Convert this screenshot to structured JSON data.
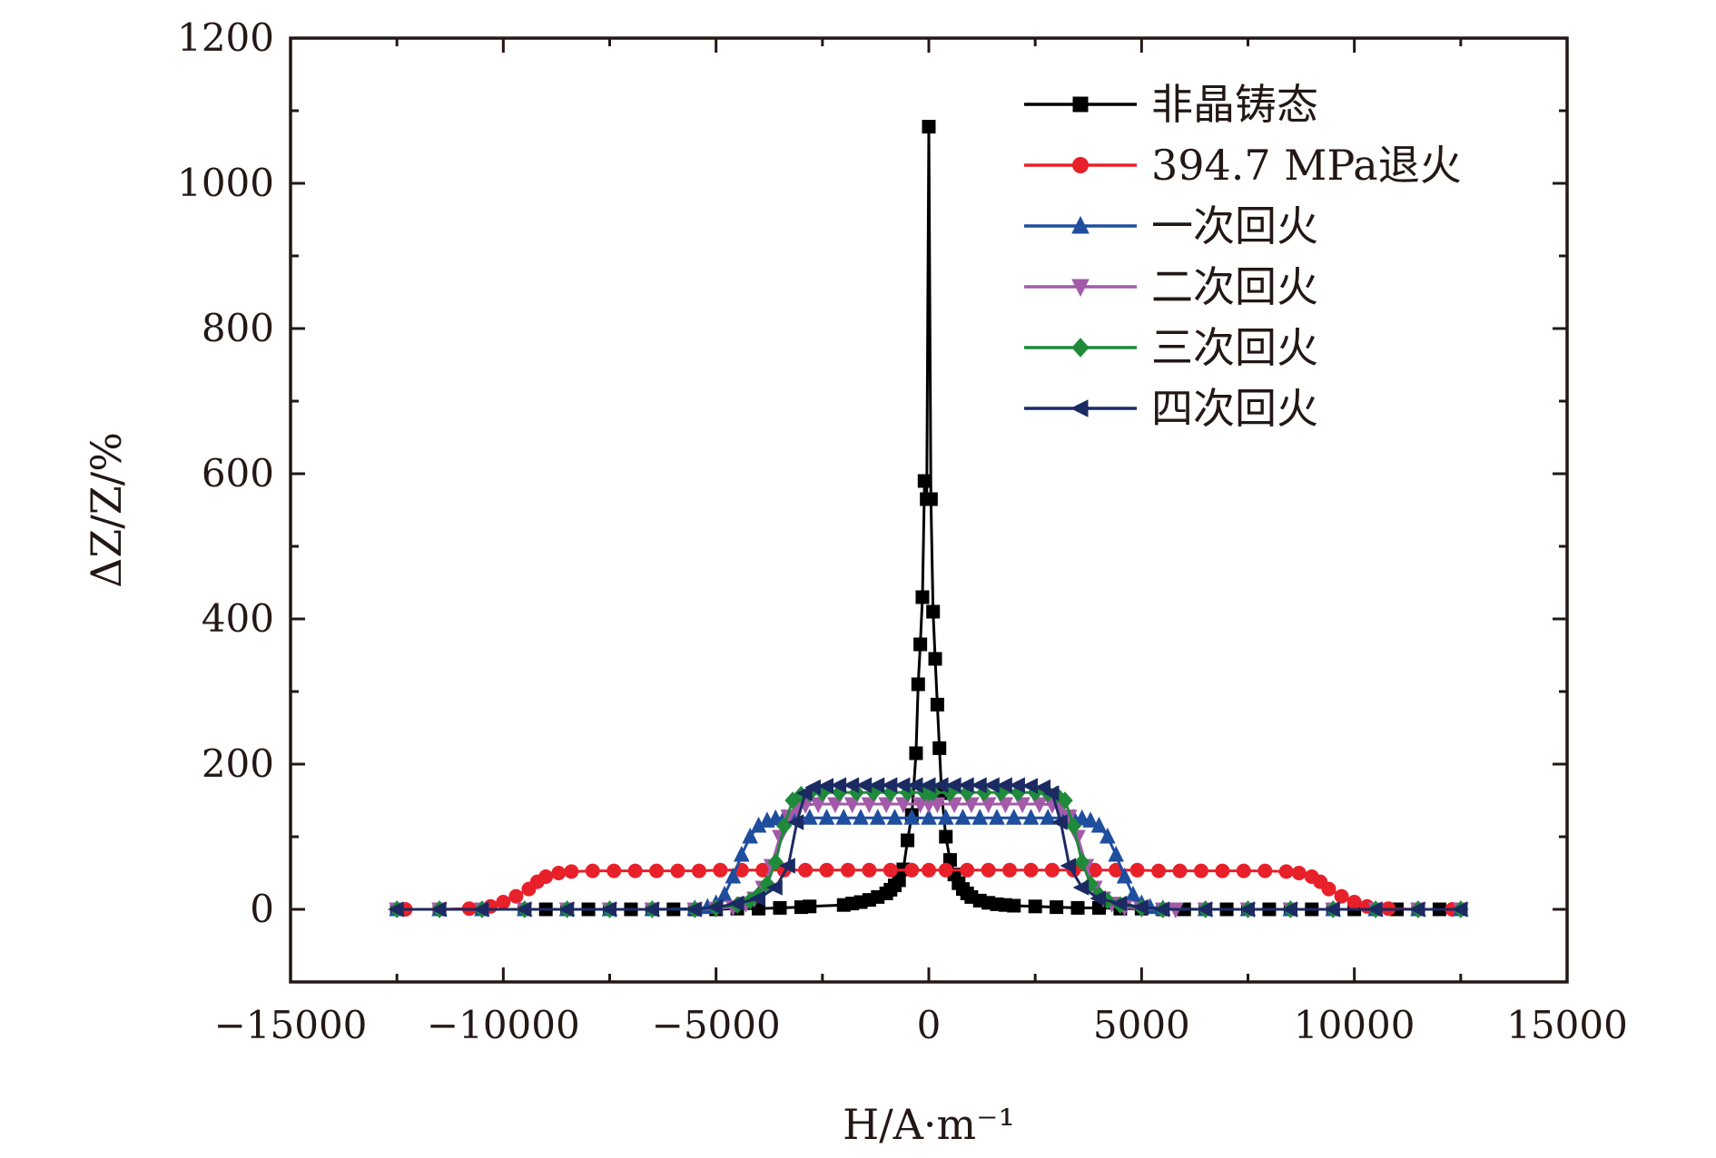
{
  "chart_data": {
    "type": "line",
    "xlabel": "H/A·m⁻¹",
    "ylabel": "ΔZ/Z/%",
    "xlim": [
      -15000,
      15000
    ],
    "ylim": [
      -100,
      1200
    ],
    "xticks": [
      -15000,
      -10000,
      -5000,
      0,
      5000,
      10000,
      15000
    ],
    "xtick_labels": [
      "−15000",
      "−10000",
      "−5000",
      "0",
      "5000",
      "10000",
      "15000"
    ],
    "yticks": [
      0,
      200,
      400,
      600,
      800,
      1000,
      1200
    ],
    "ytick_labels": [
      "0",
      "200",
      "400",
      "600",
      "800",
      "1000",
      "1200"
    ],
    "legend_position": "top-right",
    "series": [
      {
        "name": "非晶铸态",
        "color": "#000000",
        "marker": "square",
        "x": [
          -12500,
          -11500,
          -10500,
          -9500,
          -9000,
          -8500,
          -8000,
          -7500,
          -7000,
          -6500,
          -6000,
          -5500,
          -5000,
          -4500,
          -4000,
          -3500,
          -3000,
          -2800,
          -2000,
          -1800,
          -1600,
          -1400,
          -1200,
          -1000,
          -900,
          -800,
          -700,
          -600,
          -500,
          -400,
          -300,
          -250,
          -200,
          -150,
          -100,
          -50,
          0,
          50,
          100,
          150,
          200,
          250,
          300,
          400,
          500,
          600,
          700,
          800,
          900,
          1000,
          1200,
          1400,
          1600,
          1800,
          2000,
          2500,
          3000,
          3500,
          4000,
          4500,
          5000,
          5500,
          6000,
          6500,
          7000,
          7500,
          8000,
          8500,
          9000,
          9500,
          10000,
          10500,
          11000,
          11500,
          12000,
          12500
        ],
        "y": [
          0,
          0,
          0,
          0,
          0,
          0,
          0,
          0,
          0,
          0,
          0,
          0,
          0,
          1,
          1,
          2,
          3,
          4,
          6,
          8,
          10,
          13,
          17,
          22,
          27,
          33,
          40,
          55,
          95,
          130,
          215,
          310,
          365,
          430,
          590,
          565,
          1078,
          565,
          410,
          345,
          282,
          222,
          160,
          100,
          68,
          48,
          36,
          28,
          22,
          17,
          12,
          9,
          7,
          6,
          5,
          4,
          3,
          2,
          2,
          1,
          1,
          0,
          0,
          0,
          0,
          0,
          0,
          0,
          0,
          0,
          0,
          0,
          0,
          0,
          0,
          0
        ]
      },
      {
        "name": "394.7 MPa退火",
        "color": "#e8202a",
        "marker": "circle",
        "x": [
          -12300,
          -11500,
          -10800,
          -10300,
          -10000,
          -9700,
          -9400,
          -9200,
          -9000,
          -8700,
          -8400,
          -7900,
          -7400,
          -6900,
          -6400,
          -5900,
          -5400,
          -4900,
          -4400,
          -3900,
          -3400,
          -2900,
          -2400,
          -1900,
          -1400,
          -900,
          -400,
          0,
          400,
          900,
          1400,
          1900,
          2400,
          2900,
          3400,
          3900,
          4400,
          4900,
          5400,
          5900,
          6400,
          6900,
          7400,
          7900,
          8400,
          8700,
          9000,
          9200,
          9400,
          9700,
          10000,
          10300,
          10800,
          11500,
          12300
        ],
        "y": [
          0,
          0,
          1,
          4,
          10,
          18,
          28,
          38,
          45,
          50,
          52,
          53,
          53,
          53,
          53,
          53,
          53,
          54,
          54,
          54,
          54,
          54,
          54,
          54,
          54,
          54,
          54,
          54,
          54,
          54,
          54,
          54,
          54,
          54,
          54,
          54,
          54,
          54,
          53,
          53,
          53,
          53,
          53,
          53,
          52,
          50,
          45,
          38,
          28,
          18,
          10,
          4,
          1,
          0,
          0
        ]
      },
      {
        "name": "一次回火",
        "color": "#1f4e9f",
        "marker": "triangle-up",
        "x": [
          -12500,
          -11500,
          -10500,
          -9500,
          -8500,
          -7500,
          -6500,
          -5500,
          -5200,
          -5000,
          -4800,
          -4600,
          -4400,
          -4200,
          -4000,
          -3800,
          -3600,
          -3400,
          -3200,
          -2800,
          -2400,
          -2000,
          -1600,
          -1200,
          -800,
          -400,
          0,
          400,
          800,
          1200,
          1600,
          2000,
          2400,
          2800,
          3200,
          3400,
          3600,
          3800,
          4000,
          4200,
          4400,
          4600,
          4800,
          5000,
          5200,
          5500,
          6500,
          7500,
          8500,
          9500,
          10500,
          11500,
          12500
        ],
        "y": [
          0,
          0,
          0,
          0,
          0,
          0,
          0,
          1,
          3,
          8,
          20,
          45,
          75,
          100,
          115,
          122,
          125,
          126,
          126,
          126,
          126,
          126,
          126,
          126,
          126,
          126,
          126,
          126,
          126,
          126,
          126,
          126,
          126,
          126,
          126,
          126,
          125,
          122,
          115,
          100,
          75,
          45,
          20,
          8,
          3,
          1,
          0,
          0,
          0,
          0,
          0,
          0,
          0
        ]
      },
      {
        "name": "二次回火",
        "color": "#a35aa8",
        "marker": "triangle-down",
        "x": [
          -12500,
          -11500,
          -10500,
          -9500,
          -8500,
          -7500,
          -6500,
          -5500,
          -5000,
          -4600,
          -4300,
          -4100,
          -3900,
          -3700,
          -3500,
          -3300,
          -3100,
          -2900,
          -2600,
          -2200,
          -1800,
          -1400,
          -1000,
          -600,
          -200,
          0,
          200,
          600,
          1000,
          1400,
          1800,
          2200,
          2600,
          2900,
          3100,
          3300,
          3500,
          3700,
          3900,
          4100,
          4300,
          4600,
          5000,
          5500,
          5800,
          6500,
          7500,
          8500,
          9500,
          10500,
          11500,
          12500
        ],
        "y": [
          0,
          0,
          0,
          0,
          0,
          0,
          0,
          0,
          1,
          3,
          8,
          15,
          30,
          60,
          100,
          128,
          140,
          144,
          145,
          145,
          145,
          145,
          145,
          145,
          145,
          145,
          145,
          145,
          145,
          145,
          145,
          145,
          145,
          144,
          140,
          128,
          100,
          60,
          30,
          15,
          8,
          3,
          1,
          0,
          0,
          0,
          0,
          0,
          0,
          0,
          0,
          0
        ]
      },
      {
        "name": "三次回火",
        "color": "#1e8a3a",
        "marker": "diamond",
        "x": [
          -12500,
          -11500,
          -10500,
          -9500,
          -8500,
          -7500,
          -6500,
          -5500,
          -5000,
          -4500,
          -4200,
          -4000,
          -3800,
          -3600,
          -3400,
          -3200,
          -3000,
          -2800,
          -2500,
          -2100,
          -1700,
          -1300,
          -900,
          -500,
          -100,
          0,
          100,
          500,
          900,
          1300,
          1700,
          2100,
          2500,
          2800,
          3000,
          3200,
          3400,
          3600,
          3800,
          4000,
          4200,
          4500,
          5000,
          5500,
          6500,
          7500,
          8500,
          9500,
          10500,
          11500,
          12500
        ],
        "y": [
          0,
          0,
          0,
          0,
          0,
          0,
          0,
          0,
          2,
          6,
          12,
          20,
          35,
          65,
          115,
          150,
          158,
          160,
          161,
          161,
          161,
          161,
          161,
          161,
          161,
          161,
          161,
          161,
          161,
          161,
          161,
          161,
          161,
          160,
          158,
          150,
          115,
          65,
          35,
          20,
          12,
          6,
          2,
          0,
          0,
          0,
          0,
          0,
          0,
          0,
          0
        ]
      },
      {
        "name": "四次回火",
        "color": "#1c2a63",
        "marker": "triangle-left",
        "x": [
          -12500,
          -11500,
          -10500,
          -9500,
          -8500,
          -7500,
          -6500,
          -5500,
          -5000,
          -4500,
          -4000,
          -3600,
          -3300,
          -3100,
          -2900,
          -2700,
          -2400,
          -2100,
          -1800,
          -1500,
          -1200,
          -900,
          -600,
          -300,
          0,
          300,
          600,
          900,
          1200,
          1500,
          1800,
          2100,
          2400,
          2700,
          2900,
          3100,
          3300,
          3600,
          4000,
          4500,
          5000,
          5500,
          6500,
          7500,
          8500,
          9500,
          10500,
          11500,
          12500
        ],
        "y": [
          0,
          0,
          0,
          0,
          0,
          0,
          0,
          0,
          3,
          8,
          15,
          30,
          60,
          120,
          160,
          168,
          170,
          171,
          171,
          171,
          171,
          171,
          171,
          171,
          171,
          171,
          171,
          171,
          171,
          171,
          171,
          171,
          170,
          168,
          160,
          120,
          60,
          30,
          15,
          8,
          3,
          0,
          0,
          0,
          0,
          0,
          0,
          0,
          0
        ]
      }
    ]
  }
}
